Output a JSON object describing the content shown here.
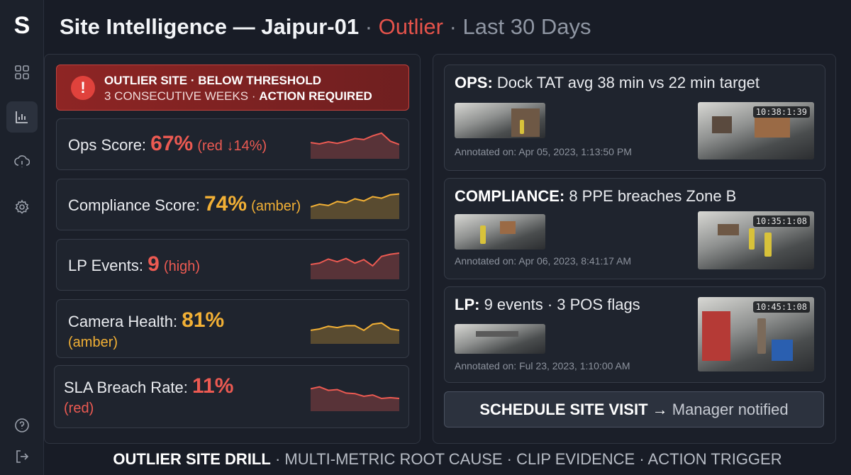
{
  "header": {
    "title": "Site Intelligence — Jaipur-01",
    "sep": "·",
    "status": "Outlier",
    "period": "Last 30 Days"
  },
  "sidebar": {
    "logo": "S",
    "items": [
      {
        "icon": "grid-icon",
        "active": false
      },
      {
        "icon": "bar-chart-icon",
        "active": true
      },
      {
        "icon": "alert-cloud-icon",
        "active": false
      },
      {
        "icon": "gear-icon",
        "active": false
      }
    ],
    "bottom": [
      {
        "icon": "help-icon"
      },
      {
        "icon": "logout-icon"
      }
    ]
  },
  "alert": {
    "icon": "!",
    "line1": "OUTLIER SITE · BELOW THRESHOLD",
    "line2_prefix": "3 CONSECUTIVE WEEKS · ",
    "line2_strong": "ACTION REQUIRED"
  },
  "metrics": [
    {
      "label": "Ops Score: ",
      "value": "67%",
      "note": "(red ↓14%)",
      "color": "#ec5a52",
      "trend": [
        0.55,
        0.5,
        0.58,
        0.52,
        0.6,
        0.7,
        0.66,
        0.8,
        0.9,
        0.6,
        0.48
      ]
    },
    {
      "label": "Compliance Score: ",
      "value": "74%",
      "note": "(amber)",
      "color": "#f2b035",
      "trend": [
        0.4,
        0.5,
        0.45,
        0.6,
        0.55,
        0.7,
        0.62,
        0.78,
        0.72,
        0.85,
        0.88
      ]
    },
    {
      "label": "LP Events: ",
      "value": "9",
      "note": "(high)",
      "color": "#ec5a52",
      "trend": [
        0.5,
        0.55,
        0.7,
        0.6,
        0.72,
        0.55,
        0.68,
        0.45,
        0.8,
        0.88,
        0.92
      ]
    },
    {
      "label": "Camera Health: ",
      "value": "81%",
      "note": "(amber)",
      "color": "#f2b035",
      "trend": [
        0.45,
        0.5,
        0.6,
        0.55,
        0.62,
        0.62,
        0.45,
        0.68,
        0.72,
        0.5,
        0.45
      ]
    },
    {
      "label": "SLA Breach Rate: ",
      "value": "11%",
      "note": "(red)",
      "color": "#ec5a52",
      "trend": [
        0.78,
        0.85,
        0.72,
        0.75,
        0.62,
        0.6,
        0.5,
        0.55,
        0.42,
        0.45,
        0.42
      ]
    }
  ],
  "evidence": [
    {
      "tag": "OPS:",
      "title": " Dock TAT avg 38 min vs 22 min target",
      "timestamp": "10:38:1:39",
      "annotated": "Annotated on: Apr 05, 2023, 1:13:50 PM"
    },
    {
      "tag": "COMPLIANCE:",
      "title": " 8 PPE breaches Zone B",
      "timestamp": "10:35:1:08",
      "annotated": "Annotated on: Apr 06, 2023, 8:41:17 AM"
    },
    {
      "tag": "LP:",
      "title": " 9 events · 3 POS flags",
      "timestamp": "10:45:1:08",
      "annotated": "Annotated on: Ful 23, 2023, 1:10:00 AM"
    }
  ],
  "cta": {
    "main": "SCHEDULE SITE VISIT",
    "arrow": " → ",
    "sub": "Manager notified"
  },
  "footer": {
    "main": "OUTLIER SITE DRILL",
    "rest": " · MULTI-METRIC ROOT CAUSE · CLIP EVIDENCE · ACTION TRIGGER"
  }
}
